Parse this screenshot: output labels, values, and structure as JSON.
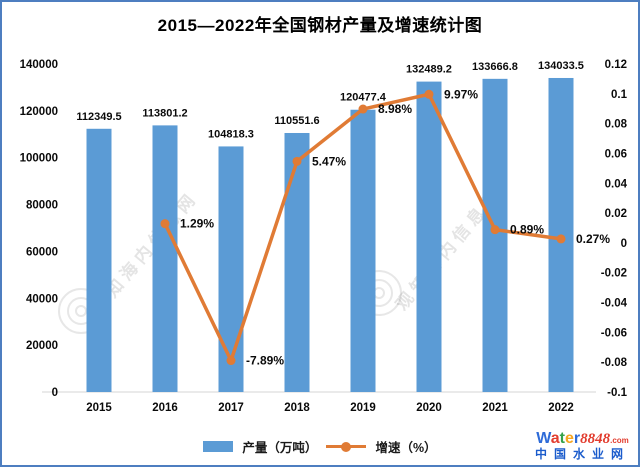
{
  "title": "2015—2022年全国钢材产量及增速统计图",
  "chart_data": {
    "type": "bar",
    "subtype": "bar-line-combo",
    "categories": [
      "2015",
      "2016",
      "2017",
      "2018",
      "2019",
      "2020",
      "2021",
      "2022"
    ],
    "series": [
      {
        "name": "产量（万吨）",
        "type": "bar",
        "axis": "left",
        "values": [
          112349.5,
          113801.2,
          104818.3,
          110551.6,
          120477.4,
          132489.2,
          133666.8,
          134033.5
        ],
        "labels": [
          "112349.5",
          "113801.2",
          "104818.3",
          "110551.6",
          "120477.4",
          "132489.2",
          "133666.8",
          "134033.5"
        ]
      },
      {
        "name": "增速（%）",
        "type": "line",
        "axis": "right",
        "values": [
          null,
          0.0129,
          -0.0789,
          0.0547,
          0.0898,
          0.0997,
          0.0089,
          0.0027
        ],
        "labels": [
          null,
          "1.29%",
          "-7.89%",
          "5.47%",
          "8.98%",
          "9.97%",
          "0.89%",
          "0.27%"
        ]
      }
    ],
    "left_axis": {
      "min": 0,
      "max": 140000,
      "step": 20000,
      "ticks": [
        {
          "v": 0,
          "label": "0"
        },
        {
          "v": 20000,
          "label": "20000"
        },
        {
          "v": 40000,
          "label": "40000"
        },
        {
          "v": 60000,
          "label": "60000"
        },
        {
          "v": 80000,
          "label": "80000"
        },
        {
          "v": 100000,
          "label": "100000"
        },
        {
          "v": 120000,
          "label": "120000"
        },
        {
          "v": 140000,
          "label": "140000"
        }
      ]
    },
    "right_axis": {
      "min": -0.1,
      "max": 0.12,
      "step": 0.02,
      "ticks": [
        {
          "v": 0.12,
          "label": "0.12"
        },
        {
          "v": 0.1,
          "label": "0.1"
        },
        {
          "v": 0.08,
          "label": "0.08"
        },
        {
          "v": 0.06,
          "label": "0.06"
        },
        {
          "v": 0.04,
          "label": "0.04"
        },
        {
          "v": 0.02,
          "label": "0.02"
        },
        {
          "v": 0,
          "label": "0"
        },
        {
          "v": -0.02,
          "label": "-0.02"
        },
        {
          "v": -0.04,
          "label": "-0.04"
        },
        {
          "v": -0.06,
          "label": "-0.06"
        },
        {
          "v": -0.08,
          "label": "-0.08"
        },
        {
          "v": -0.1,
          "label": "-0.1"
        }
      ]
    },
    "grid": false,
    "legend_position": "bottom"
  },
  "legend": {
    "bar_label": "产量（万吨）",
    "line_label": "增速（%）"
  },
  "watermarks": {
    "text": "观知海内信息网"
  },
  "logo": {
    "letters": [
      {
        "ch": "W",
        "color": "#2e6bd8"
      },
      {
        "ch": "a",
        "color": "#e23c2e"
      },
      {
        "ch": "t",
        "color": "#35a24a"
      },
      {
        "ch": "e",
        "color": "#f6a520"
      },
      {
        "ch": "r",
        "color": "#2e6bd8"
      }
    ],
    "digits": "8848",
    "tld": ".com",
    "site_name": "中国水业网"
  },
  "colors": {
    "bar": "#5B9BD5",
    "line": "#E07B35",
    "label": "#0a0a0a",
    "axis_line": "#d6d6d6",
    "border": "#4d7ec0"
  }
}
